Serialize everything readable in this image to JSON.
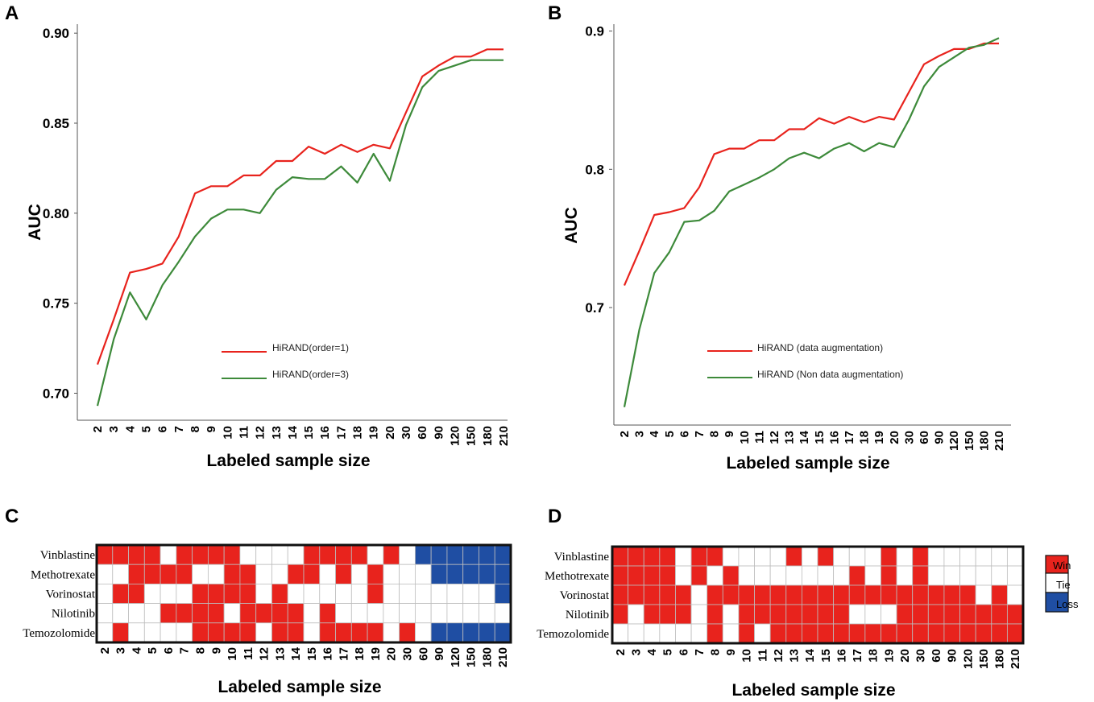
{
  "panels": {
    "A": "A",
    "B": "B",
    "C": "C",
    "D": "D"
  },
  "colors": {
    "red": "#e8231d",
    "green": "#3d8a3a",
    "win": "#e8231d",
    "tie": "#ffffff",
    "loss": "#1f4ea3"
  },
  "chart_data": [
    {
      "id": "A",
      "type": "line",
      "title": "",
      "xlabel": "Labeled sample size",
      "ylabel": "AUC",
      "x": [
        "2",
        "3",
        "4",
        "5",
        "6",
        "7",
        "8",
        "9",
        "10",
        "11",
        "12",
        "13",
        "14",
        "15",
        "16",
        "17",
        "18",
        "19",
        "20",
        "30",
        "60",
        "90",
        "120",
        "150",
        "180",
        "210"
      ],
      "ylim": [
        0.685,
        0.905
      ],
      "yticks": [
        0.7,
        0.75,
        0.8,
        0.85,
        0.9
      ],
      "ytick_labels": [
        "0.70",
        "0.75",
        "0.80",
        "0.85",
        "0.90"
      ],
      "series": [
        {
          "name": "HiRAND(order=1)",
          "color": "#e8231d",
          "values": [
            0.716,
            0.741,
            0.767,
            0.769,
            0.772,
            0.787,
            0.811,
            0.815,
            0.815,
            0.821,
            0.821,
            0.829,
            0.829,
            0.837,
            0.833,
            0.838,
            0.834,
            0.838,
            0.836,
            0.856,
            0.876,
            0.882,
            0.887,
            0.887,
            0.891,
            0.891
          ]
        },
        {
          "name": "HiRAND(order=3)",
          "color": "#3d8a3a",
          "values": [
            0.693,
            0.73,
            0.756,
            0.741,
            0.76,
            0.773,
            0.787,
            0.797,
            0.802,
            0.802,
            0.8,
            0.813,
            0.82,
            0.819,
            0.819,
            0.826,
            0.817,
            0.833,
            0.818,
            0.849,
            0.87,
            0.879,
            0.882,
            0.885,
            0.885,
            0.885
          ]
        }
      ],
      "legend": "center-bottom"
    },
    {
      "id": "B",
      "type": "line",
      "title": "",
      "xlabel": "Labeled sample size",
      "ylabel": "AUC",
      "x": [
        "2",
        "3",
        "4",
        "5",
        "6",
        "7",
        "8",
        "9",
        "10",
        "11",
        "12",
        "13",
        "14",
        "15",
        "16",
        "17",
        "18",
        "19",
        "20",
        "30",
        "60",
        "90",
        "120",
        "150",
        "180",
        "210"
      ],
      "ylim": [
        0.615,
        0.905
      ],
      "yticks": [
        0.7,
        0.8,
        0.9
      ],
      "ytick_labels": [
        "0.7",
        "0.8",
        "0.9"
      ],
      "series": [
        {
          "name": "HiRAND (data augmentation)",
          "color": "#e8231d",
          "values": [
            0.716,
            0.741,
            0.767,
            0.769,
            0.772,
            0.787,
            0.811,
            0.815,
            0.815,
            0.821,
            0.821,
            0.829,
            0.829,
            0.837,
            0.833,
            0.838,
            0.834,
            0.838,
            0.836,
            0.856,
            0.876,
            0.882,
            0.887,
            0.887,
            0.891,
            0.891
          ]
        },
        {
          "name": "HiRAND (Non data augmentation)",
          "color": "#3d8a3a",
          "values": [
            0.628,
            0.684,
            0.725,
            0.74,
            0.762,
            0.763,
            0.77,
            0.784,
            0.789,
            0.794,
            0.8,
            0.808,
            0.812,
            0.808,
            0.815,
            0.819,
            0.813,
            0.819,
            0.816,
            0.836,
            0.86,
            0.874,
            0.881,
            0.888,
            0.89,
            0.895
          ]
        }
      ],
      "legend": "center-bottom"
    },
    {
      "id": "C",
      "type": "heatmap",
      "xlabel": "Labeled sample size",
      "rows": [
        "Vinblastine",
        "Methotrexate",
        "Vorinostat",
        "Nilotinib",
        "Temozolomide"
      ],
      "columns": [
        "2",
        "3",
        "4",
        "5",
        "6",
        "7",
        "8",
        "9",
        "10",
        "11",
        "12",
        "13",
        "14",
        "15",
        "16",
        "17",
        "18",
        "19",
        "20",
        "30",
        "60",
        "90",
        "120",
        "150",
        "180",
        "210"
      ],
      "values": [
        [
          "W",
          "W",
          "W",
          "W",
          "T",
          "W",
          "W",
          "W",
          "W",
          "T",
          "T",
          "T",
          "T",
          "W",
          "W",
          "W",
          "W",
          "T",
          "W",
          "T",
          "L",
          "L",
          "L",
          "L",
          "L",
          "L"
        ],
        [
          "T",
          "T",
          "W",
          "W",
          "W",
          "W",
          "T",
          "T",
          "W",
          "W",
          "T",
          "T",
          "W",
          "W",
          "T",
          "W",
          "T",
          "W",
          "T",
          "T",
          "T",
          "L",
          "L",
          "L",
          "L",
          "L"
        ],
        [
          "T",
          "W",
          "W",
          "T",
          "T",
          "T",
          "W",
          "W",
          "W",
          "W",
          "T",
          "W",
          "T",
          "T",
          "T",
          "T",
          "T",
          "W",
          "T",
          "T",
          "T",
          "T",
          "T",
          "T",
          "T",
          "L"
        ],
        [
          "T",
          "T",
          "T",
          "T",
          "W",
          "W",
          "W",
          "W",
          "T",
          "W",
          "W",
          "W",
          "W",
          "T",
          "W",
          "T",
          "T",
          "T",
          "T",
          "T",
          "T",
          "T",
          "T",
          "T",
          "T",
          "T"
        ],
        [
          "T",
          "W",
          "T",
          "T",
          "T",
          "T",
          "W",
          "W",
          "W",
          "W",
          "T",
          "W",
          "W",
          "T",
          "W",
          "W",
          "W",
          "W",
          "T",
          "W",
          "T",
          "L",
          "L",
          "L",
          "L",
          "L"
        ]
      ]
    },
    {
      "id": "D",
      "type": "heatmap",
      "xlabel": "Labeled sample size",
      "rows": [
        "Vinblastine",
        "Methotrexate",
        "Vorinostat",
        "Nilotinib",
        "Temozolomide"
      ],
      "columns": [
        "2",
        "3",
        "4",
        "5",
        "6",
        "7",
        "8",
        "9",
        "10",
        "11",
        "12",
        "13",
        "14",
        "15",
        "16",
        "17",
        "18",
        "19",
        "20",
        "30",
        "60",
        "90",
        "120",
        "150",
        "180",
        "210"
      ],
      "values": [
        [
          "W",
          "W",
          "W",
          "W",
          "T",
          "W",
          "W",
          "T",
          "T",
          "T",
          "T",
          "W",
          "T",
          "W",
          "T",
          "T",
          "T",
          "W",
          "T",
          "W",
          "T",
          "T",
          "T",
          "T",
          "T",
          "T"
        ],
        [
          "W",
          "W",
          "W",
          "W",
          "T",
          "W",
          "T",
          "W",
          "T",
          "T",
          "T",
          "T",
          "T",
          "T",
          "T",
          "W",
          "T",
          "W",
          "T",
          "W",
          "T",
          "T",
          "T",
          "T",
          "T",
          "T"
        ],
        [
          "W",
          "W",
          "W",
          "W",
          "W",
          "T",
          "W",
          "W",
          "W",
          "W",
          "W",
          "W",
          "W",
          "W",
          "W",
          "W",
          "W",
          "W",
          "W",
          "W",
          "W",
          "W",
          "W",
          "T",
          "W",
          "T"
        ],
        [
          "W",
          "T",
          "W",
          "W",
          "W",
          "T",
          "W",
          "T",
          "W",
          "W",
          "W",
          "W",
          "W",
          "W",
          "W",
          "T",
          "T",
          "T",
          "W",
          "W",
          "W",
          "W",
          "W",
          "W",
          "W",
          "W"
        ],
        [
          "T",
          "T",
          "T",
          "T",
          "T",
          "T",
          "W",
          "T",
          "W",
          "T",
          "W",
          "W",
          "W",
          "W",
          "W",
          "W",
          "W",
          "W",
          "W",
          "W",
          "W",
          "W",
          "W",
          "W",
          "W",
          "W"
        ]
      ],
      "legend": {
        "win": "Win",
        "tie": "Tie",
        "loss": "Loss"
      }
    }
  ]
}
